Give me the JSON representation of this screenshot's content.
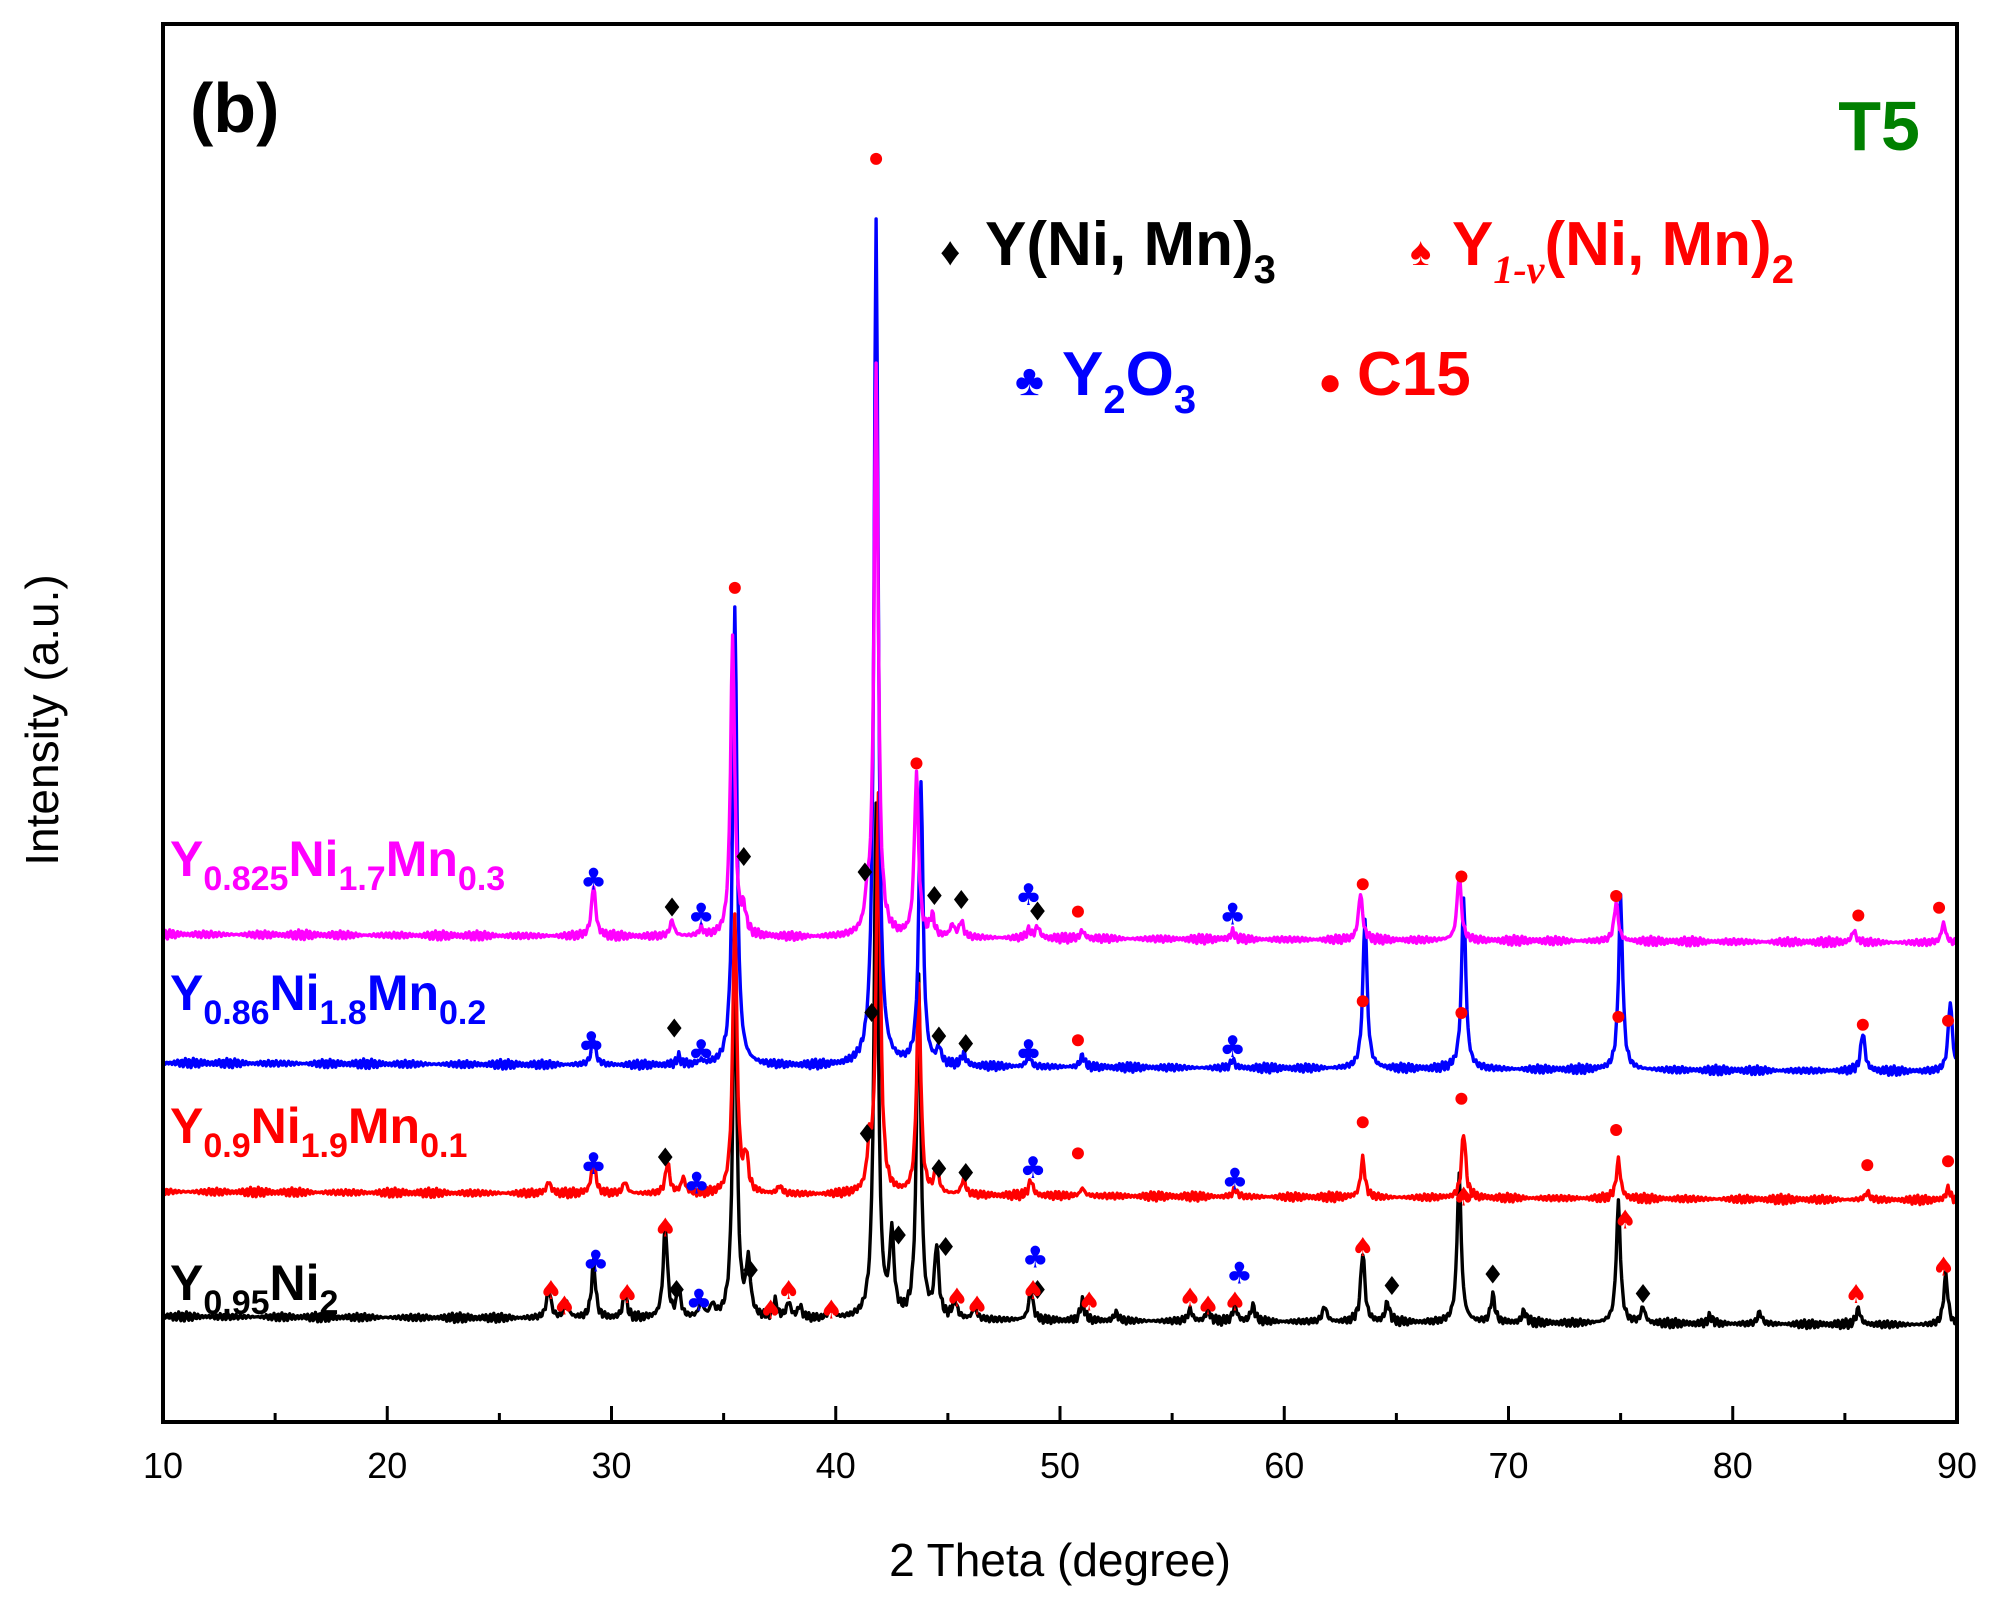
{
  "chart_data": {
    "type": "line",
    "panel_label": "(b)",
    "condition_label": "T5",
    "xlabel": "2 Theta (degree)",
    "ylabel": "Intensity (a.u.)",
    "xlim": [
      10,
      90
    ],
    "xticks": [
      10,
      20,
      30,
      40,
      50,
      60,
      70,
      80,
      90
    ],
    "yticks_shown": false,
    "legend": {
      "placement": "top-right",
      "entries": [
        {
          "symbol": "♦",
          "label": "Y(Ni, Mn)",
          "sub": "3",
          "color": "#000000"
        },
        {
          "symbol": "♠",
          "label": "Y",
          "sub": "1-v",
          "label2": "(Ni, Mn)",
          "sub2": "2",
          "color": "#ff0000"
        },
        {
          "symbol": "♣",
          "label": "Y",
          "sub": "2",
          "label2": "O",
          "sub2": "3",
          "color": "#0000ff"
        },
        {
          "symbol": "●",
          "label": "C15",
          "color": "#ff0000"
        }
      ]
    },
    "series": [
      {
        "name": "Y0.95Ni2",
        "color": "#000000",
        "baseline": 0.0,
        "label_parts": [
          {
            "t": "Y"
          },
          {
            "s": "0.95"
          },
          {
            "t": "Ni"
          },
          {
            "s": "2"
          }
        ],
        "peaks": [
          [
            27.2,
            0.08
          ],
          [
            28.0,
            0.04
          ],
          [
            29.2,
            0.14
          ],
          [
            30.6,
            0.06
          ],
          [
            32.4,
            0.24
          ],
          [
            33.0,
            0.07
          ],
          [
            34.0,
            0.04
          ],
          [
            34.5,
            0.03
          ],
          [
            35.5,
            0.92
          ],
          [
            36.1,
            0.14
          ],
          [
            37.3,
            0.04
          ],
          [
            37.9,
            0.04
          ],
          [
            38.4,
            0.03
          ],
          [
            39.8,
            0.03
          ],
          [
            41.8,
            1.32
          ],
          [
            42.5,
            0.21
          ],
          [
            43.7,
            0.88
          ],
          [
            44.5,
            0.18
          ],
          [
            45.3,
            0.05
          ],
          [
            46.2,
            0.03
          ],
          [
            48.7,
            0.08
          ],
          [
            51.0,
            0.05
          ],
          [
            52.5,
            0.02
          ],
          [
            55.8,
            0.03
          ],
          [
            56.6,
            0.03
          ],
          [
            57.8,
            0.04
          ],
          [
            58.6,
            0.04
          ],
          [
            61.8,
            0.04
          ],
          [
            63.5,
            0.18
          ],
          [
            64.6,
            0.05
          ],
          [
            67.8,
            0.38
          ],
          [
            69.3,
            0.07
          ],
          [
            70.7,
            0.03
          ],
          [
            74.9,
            0.31
          ],
          [
            76.0,
            0.04
          ],
          [
            79.0,
            0.02
          ],
          [
            81.2,
            0.03
          ],
          [
            85.6,
            0.04
          ],
          [
            89.5,
            0.13
          ]
        ]
      },
      {
        "name": "Y0.9Ni1.9Mn0.1",
        "color": "#ff0000",
        "baseline": 0.32,
        "label_parts": [
          {
            "t": "Y"
          },
          {
            "s": "0.9"
          },
          {
            "t": "Ni"
          },
          {
            "s": "1.9"
          },
          {
            "t": "Mn"
          },
          {
            "s": "0.1"
          }
        ],
        "peaks": [
          [
            27.2,
            0.03
          ],
          [
            29.2,
            0.09
          ],
          [
            30.6,
            0.03
          ],
          [
            32.5,
            0.08
          ],
          [
            33.2,
            0.04
          ],
          [
            35.5,
            0.72
          ],
          [
            36.0,
            0.09
          ],
          [
            37.5,
            0.02
          ],
          [
            41.5,
            0.1
          ],
          [
            41.9,
            1.03
          ],
          [
            43.7,
            0.53
          ],
          [
            44.5,
            0.07
          ],
          [
            45.7,
            0.04
          ],
          [
            48.7,
            0.04
          ],
          [
            51.0,
            0.02
          ],
          [
            57.8,
            0.02
          ],
          [
            63.5,
            0.1
          ],
          [
            68.0,
            0.17
          ],
          [
            74.9,
            0.1
          ],
          [
            86.0,
            0.02
          ],
          [
            89.6,
            0.03
          ]
        ]
      },
      {
        "name": "Y0.86Ni1.8Mn0.2",
        "color": "#0000ff",
        "baseline": 0.65,
        "label_parts": [
          {
            "t": "Y"
          },
          {
            "s": "0.86"
          },
          {
            "t": "Ni"
          },
          {
            "s": "1.8"
          },
          {
            "t": "Mn"
          },
          {
            "s": "0.2"
          }
        ],
        "peaks": [
          [
            29.2,
            0.07
          ],
          [
            33.0,
            0.02
          ],
          [
            34.0,
            0.01
          ],
          [
            35.5,
            1.18
          ],
          [
            41.8,
            2.17
          ],
          [
            43.8,
            0.73
          ],
          [
            44.6,
            0.04
          ],
          [
            45.7,
            0.03
          ],
          [
            48.6,
            0.03
          ],
          [
            51.0,
            0.03
          ],
          [
            57.7,
            0.02
          ],
          [
            63.6,
            0.39
          ],
          [
            68.0,
            0.44
          ],
          [
            75.0,
            0.44
          ],
          [
            85.8,
            0.1
          ],
          [
            89.7,
            0.18
          ]
        ]
      },
      {
        "name": "Y0.825Ni1.7Mn0.3",
        "color": "#ff00ff",
        "baseline": 0.98,
        "label_parts": [
          {
            "t": "Y"
          },
          {
            "s": "0.825"
          },
          {
            "t": "Ni"
          },
          {
            "s": "1.7"
          },
          {
            "t": "Mn"
          },
          {
            "s": "0.3"
          }
        ],
        "peaks": [
          [
            29.2,
            0.13
          ],
          [
            32.7,
            0.04
          ],
          [
            34.0,
            0.02
          ],
          [
            35.4,
            0.77
          ],
          [
            35.9,
            0.06
          ],
          [
            41.4,
            0.06
          ],
          [
            41.8,
            1.46
          ],
          [
            43.6,
            0.42
          ],
          [
            44.3,
            0.05
          ],
          [
            45.2,
            0.03
          ],
          [
            45.6,
            0.04
          ],
          [
            48.6,
            0.02
          ],
          [
            49.0,
            0.03
          ],
          [
            51.0,
            0.02
          ],
          [
            57.7,
            0.02
          ],
          [
            63.4,
            0.12
          ],
          [
            67.8,
            0.17
          ],
          [
            74.8,
            0.1
          ],
          [
            85.4,
            0.03
          ],
          [
            89.4,
            0.05
          ]
        ]
      }
    ],
    "markers": [
      {
        "type": "diamond",
        "symbol": "♦",
        "color": "#000000",
        "points": [
          [
            32.9,
            0.09
          ],
          [
            36.2,
            0.14
          ],
          [
            42.8,
            0.23
          ],
          [
            44.9,
            0.2
          ],
          [
            49.0,
            0.09
          ],
          [
            64.8,
            0.1
          ],
          [
            69.3,
            0.13
          ],
          [
            76.0,
            0.08
          ],
          [
            32.4,
            0.43
          ],
          [
            41.4,
            0.49
          ],
          [
            44.6,
            0.4
          ],
          [
            45.8,
            0.39
          ],
          [
            32.8,
            0.76
          ],
          [
            41.6,
            0.8
          ],
          [
            44.6,
            0.74
          ],
          [
            45.8,
            0.72
          ],
          [
            32.7,
            1.07
          ],
          [
            35.9,
            1.2
          ],
          [
            41.3,
            1.16
          ],
          [
            44.4,
            1.1
          ],
          [
            45.6,
            1.09
          ],
          [
            49.0,
            1.06
          ]
        ]
      },
      {
        "type": "spade",
        "symbol": "♠",
        "color": "#ff0000",
        "points": [
          [
            27.3,
            0.09
          ],
          [
            27.9,
            0.05
          ],
          [
            30.7,
            0.08
          ],
          [
            32.4,
            0.25
          ],
          [
            37.1,
            0.04
          ],
          [
            37.9,
            0.09
          ],
          [
            39.8,
            0.04
          ],
          [
            45.4,
            0.07
          ],
          [
            46.3,
            0.05
          ],
          [
            48.8,
            0.09
          ],
          [
            51.3,
            0.06
          ],
          [
            55.8,
            0.07
          ],
          [
            56.6,
            0.05
          ],
          [
            57.8,
            0.06
          ],
          [
            63.5,
            0.2
          ],
          [
            68.0,
            0.33
          ],
          [
            75.2,
            0.27
          ],
          [
            85.5,
            0.08
          ],
          [
            89.4,
            0.15
          ]
        ]
      },
      {
        "type": "club",
        "symbol": "♣",
        "color": "#0000ff",
        "points": [
          [
            29.3,
            0.16
          ],
          [
            33.9,
            0.06
          ],
          [
            48.9,
            0.17
          ],
          [
            58.0,
            0.13
          ],
          [
            29.2,
            0.41
          ],
          [
            33.8,
            0.36
          ],
          [
            48.8,
            0.4
          ],
          [
            57.8,
            0.37
          ],
          [
            29.1,
            0.72
          ],
          [
            34.0,
            0.7
          ],
          [
            48.6,
            0.7
          ],
          [
            57.7,
            0.71
          ],
          [
            29.2,
            1.14
          ],
          [
            34.0,
            1.05
          ],
          [
            48.6,
            1.1
          ],
          [
            57.7,
            1.05
          ]
        ]
      },
      {
        "type": "dot",
        "symbol": "●",
        "color": "#ff0000",
        "points": [
          [
            35.5,
            1.89
          ],
          [
            41.8,
            2.99
          ],
          [
            43.6,
            1.44
          ],
          [
            50.8,
            1.06
          ],
          [
            63.5,
            1.13
          ],
          [
            67.9,
            1.15
          ],
          [
            74.8,
            1.1
          ],
          [
            85.6,
            1.05
          ],
          [
            89.2,
            1.07
          ],
          [
            50.8,
            0.73
          ],
          [
            63.5,
            0.83
          ],
          [
            67.9,
            0.8
          ],
          [
            74.9,
            0.79
          ],
          [
            85.8,
            0.77
          ],
          [
            89.6,
            0.78
          ],
          [
            50.8,
            0.44
          ],
          [
            63.5,
            0.52
          ],
          [
            67.9,
            0.58
          ],
          [
            74.8,
            0.5
          ],
          [
            86.0,
            0.41
          ],
          [
            89.6,
            0.42
          ]
        ]
      }
    ]
  }
}
